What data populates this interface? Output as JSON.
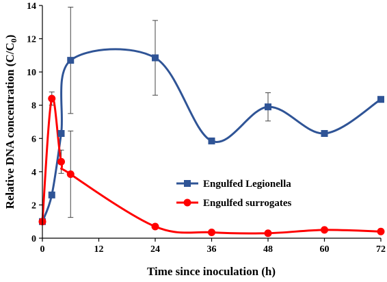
{
  "chart_data": {
    "type": "line",
    "xlabel": "Time since inoculation (h)",
    "ylabel": "Relative DNA concentration (C/C",
    "ylabel_sub": "0",
    "ylabel_end": ")",
    "xlim": [
      0,
      72
    ],
    "ylim": [
      0,
      14
    ],
    "xticks": [
      0,
      12,
      24,
      36,
      48,
      60,
      72
    ],
    "yticks": [
      0,
      2,
      4,
      6,
      8,
      10,
      12,
      14
    ],
    "legend_position": "center-right",
    "grid": false,
    "smooth": true,
    "series": [
      {
        "name": "Engulfed Legionella",
        "color": "#2F5496",
        "marker": "square",
        "x": [
          0,
          2,
          4,
          6,
          24,
          36,
          48,
          60,
          72
        ],
        "y": [
          1.0,
          2.6,
          6.3,
          10.7,
          10.85,
          5.85,
          7.9,
          6.3,
          8.35
        ],
        "err": [
          0,
          0,
          0,
          3.2,
          2.25,
          0,
          0.85,
          0,
          0
        ]
      },
      {
        "name": "Engulfed surrogates",
        "color": "#FF0000",
        "marker": "circle",
        "x": [
          0,
          2,
          4,
          6,
          24,
          36,
          48,
          60,
          72
        ],
        "y": [
          1.0,
          8.4,
          4.6,
          3.85,
          0.7,
          0.35,
          0.3,
          0.5,
          0.4
        ],
        "err": [
          0,
          0.4,
          0.7,
          2.6,
          0,
          0,
          0,
          0,
          0
        ]
      }
    ]
  }
}
